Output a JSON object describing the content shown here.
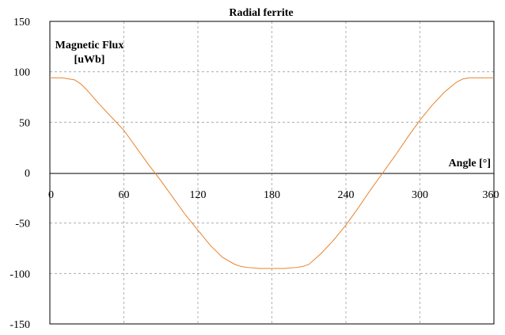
{
  "chart_data": {
    "type": "line",
    "title": "Radial ferrite",
    "ylabel_line1": "Magnetic Flux",
    "ylabel_line2": "[uWb]",
    "xlabel": "Angle [°]",
    "xlim": [
      0,
      360
    ],
    "ylim": [
      -150,
      150
    ],
    "x_ticks": [
      0,
      60,
      120,
      180,
      240,
      300,
      360
    ],
    "y_ticks": [
      150,
      100,
      50,
      0,
      -50,
      -100,
      -150
    ],
    "grid": true,
    "series_color": "#e8822a",
    "series": [
      {
        "x": [
          0,
          10,
          20,
          25,
          30,
          40,
          50,
          60,
          70,
          80,
          90,
          100,
          110,
          120,
          130,
          140,
          150,
          155,
          160,
          170,
          180,
          190,
          200,
          205,
          210,
          220,
          230,
          240,
          250,
          260,
          270,
          280,
          290,
          300,
          310,
          320,
          330,
          335,
          340,
          350,
          360
        ],
        "y": [
          94,
          94,
          92,
          88,
          82,
          68,
          55,
          42,
          25,
          8,
          -8,
          -25,
          -42,
          -57,
          -72,
          -84,
          -91,
          -93,
          -94,
          -95,
          -95,
          -95,
          -94,
          -93,
          -91,
          -80,
          -67,
          -52,
          -35,
          -17,
          0,
          17,
          35,
          52,
          67,
          80,
          90,
          93,
          94,
          94,
          94
        ]
      }
    ]
  }
}
